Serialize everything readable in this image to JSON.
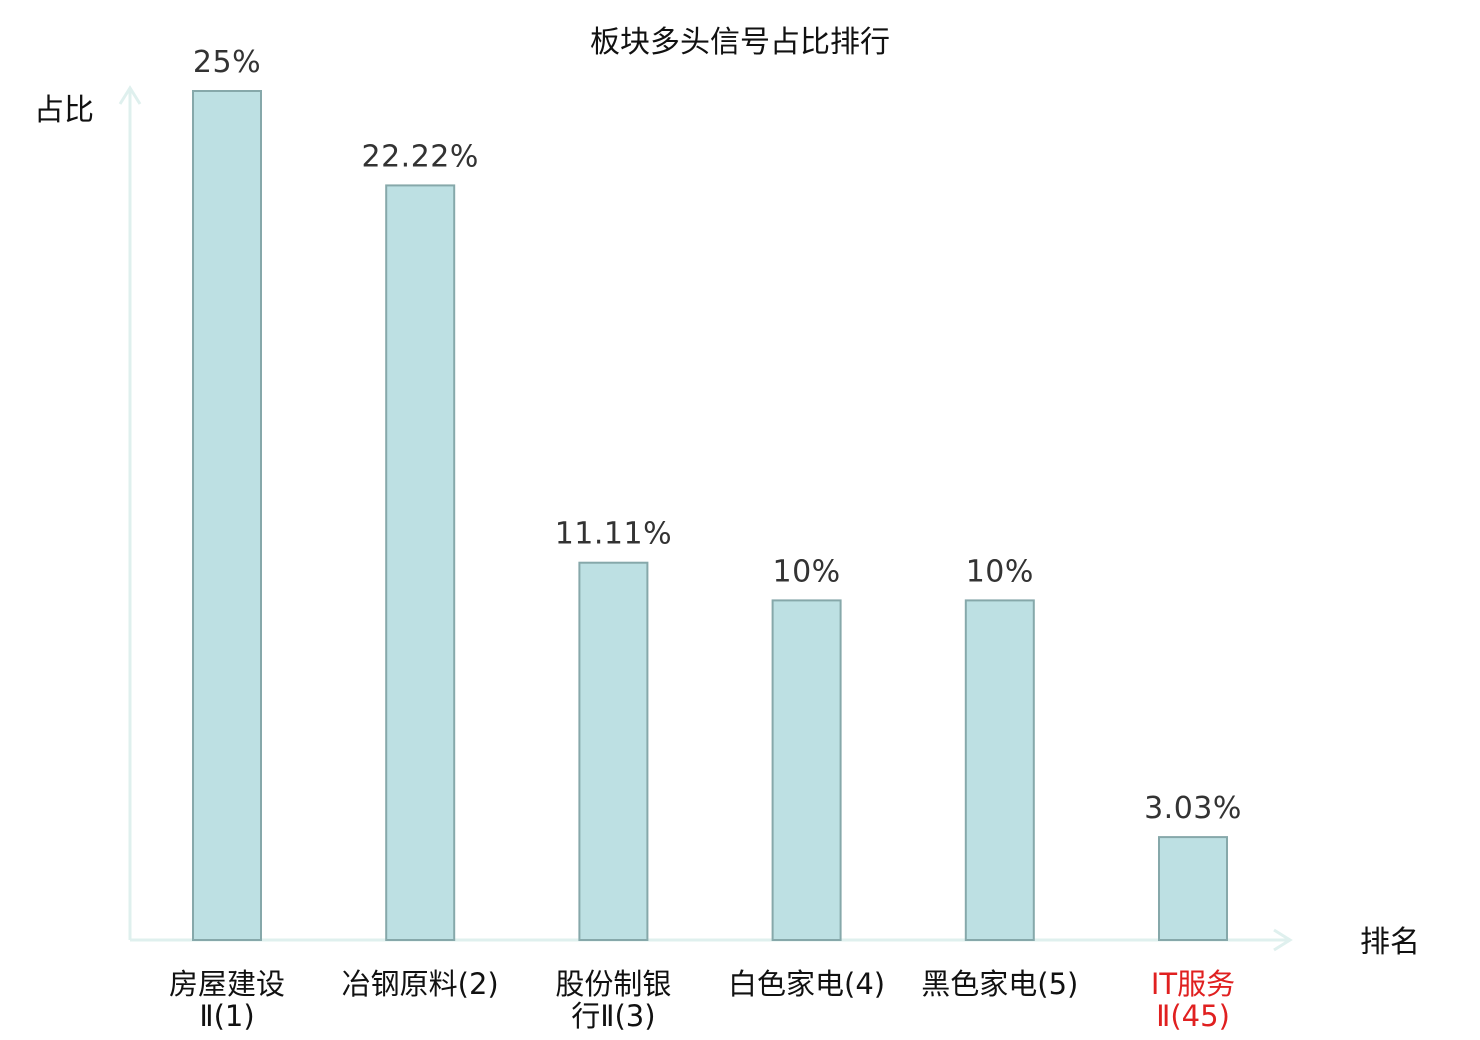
{
  "chart_data": {
    "type": "bar",
    "title": "板块多头信号占比排行",
    "xlabel": "排名",
    "ylabel": "占比",
    "ylim": [
      0,
      25
    ],
    "grid": false,
    "categories": [
      {
        "line1": "房屋建设",
        "line2": "Ⅱ(1)",
        "highlight": false
      },
      {
        "line1": "冶钢原料(2)",
        "line2": "",
        "highlight": false
      },
      {
        "line1": "股份制银",
        "line2": "行Ⅱ(3)",
        "highlight": false
      },
      {
        "line1": "白色家电(4)",
        "line2": "",
        "highlight": false
      },
      {
        "line1": "黑色家电(5)",
        "line2": "",
        "highlight": false
      },
      {
        "line1": "IT服务",
        "line2": "Ⅱ(45)",
        "highlight": true
      }
    ],
    "values": [
      25,
      22.22,
      11.11,
      10,
      10,
      3.03
    ],
    "value_labels": [
      "25%",
      "22.22%",
      "11.11%",
      "10%",
      "10%",
      "3.03%"
    ],
    "colors": {
      "bar_fill": "#bde0e3",
      "bar_stroke": "#86a8aa",
      "axis": "#dff0ee",
      "highlight_text": "#e02020"
    }
  }
}
